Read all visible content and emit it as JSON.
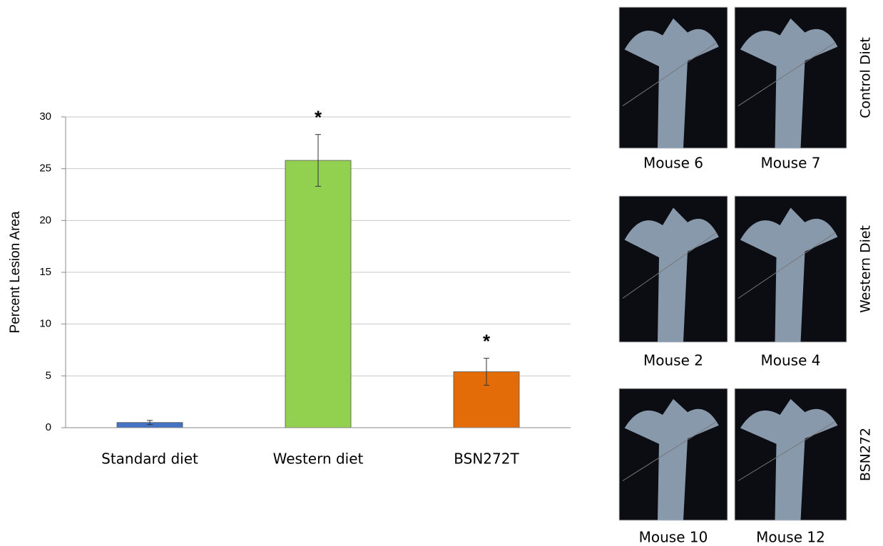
{
  "chart_data": {
    "type": "bar",
    "y_label": "Percent Lesion Area",
    "categories": [
      "Standard diet",
      "Western diet",
      "BSN272T"
    ],
    "values": [
      0.5,
      25.8,
      5.4
    ],
    "errors": [
      0.2,
      2.5,
      1.3
    ],
    "colors": [
      "#4472c4",
      "#92d050",
      "#e36c09"
    ],
    "significance": [
      null,
      "*",
      "*"
    ],
    "ylim": [
      0,
      30
    ],
    "yticks": [
      0,
      5,
      10,
      15,
      20,
      25,
      30
    ],
    "grid": true
  },
  "figure_panels": [
    {
      "group": "Control Diet",
      "images": [
        "Mouse 6",
        "Mouse 7"
      ]
    },
    {
      "group": "Western Diet",
      "images": [
        "Mouse 2",
        "Mouse 4"
      ]
    },
    {
      "group": "BSN272",
      "images": [
        "Mouse 10",
        "Mouse 12"
      ]
    }
  ]
}
